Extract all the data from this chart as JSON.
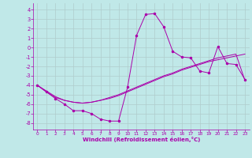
{
  "xlabel": "Windchill (Refroidissement éolien,°C)",
  "xlim": [
    -0.5,
    23.5
  ],
  "ylim": [
    -8.7,
    4.7
  ],
  "yticks": [
    -8,
    -7,
    -6,
    -5,
    -4,
    -3,
    -2,
    -1,
    0,
    1,
    2,
    3,
    4
  ],
  "xticks": [
    0,
    1,
    2,
    3,
    4,
    5,
    6,
    7,
    8,
    9,
    10,
    11,
    12,
    13,
    14,
    15,
    16,
    17,
    18,
    19,
    20,
    21,
    22,
    23
  ],
  "background_color": "#c0e8e8",
  "line_color": "#aa00aa",
  "grid_color": "#b0cccc",
  "line1_y": [
    -4.0,
    -4.7,
    -5.4,
    -6.0,
    -6.7,
    -6.7,
    -7.0,
    -7.6,
    -7.8,
    -7.8,
    -4.2,
    1.3,
    3.5,
    3.6,
    2.2,
    -0.4,
    -1.0,
    -1.1,
    -2.5,
    -2.7,
    0.1,
    -1.7,
    -1.8,
    -3.4
  ],
  "line2_y": [
    -4.0,
    -4.6,
    -5.2,
    -5.6,
    -5.8,
    -5.9,
    -5.8,
    -5.6,
    -5.3,
    -5.0,
    -4.6,
    -4.2,
    -3.8,
    -3.4,
    -3.0,
    -2.7,
    -2.3,
    -2.0,
    -1.7,
    -1.4,
    -1.1,
    -0.9,
    -0.7,
    -3.5
  ],
  "line3_y": [
    -4.0,
    -4.7,
    -5.3,
    -5.6,
    -5.8,
    -5.9,
    -5.8,
    -5.6,
    -5.4,
    -5.1,
    -4.7,
    -4.3,
    -3.9,
    -3.5,
    -3.1,
    -2.8,
    -2.4,
    -2.1,
    -1.8,
    -1.5,
    -1.3,
    -1.1,
    -0.9,
    -0.7
  ]
}
